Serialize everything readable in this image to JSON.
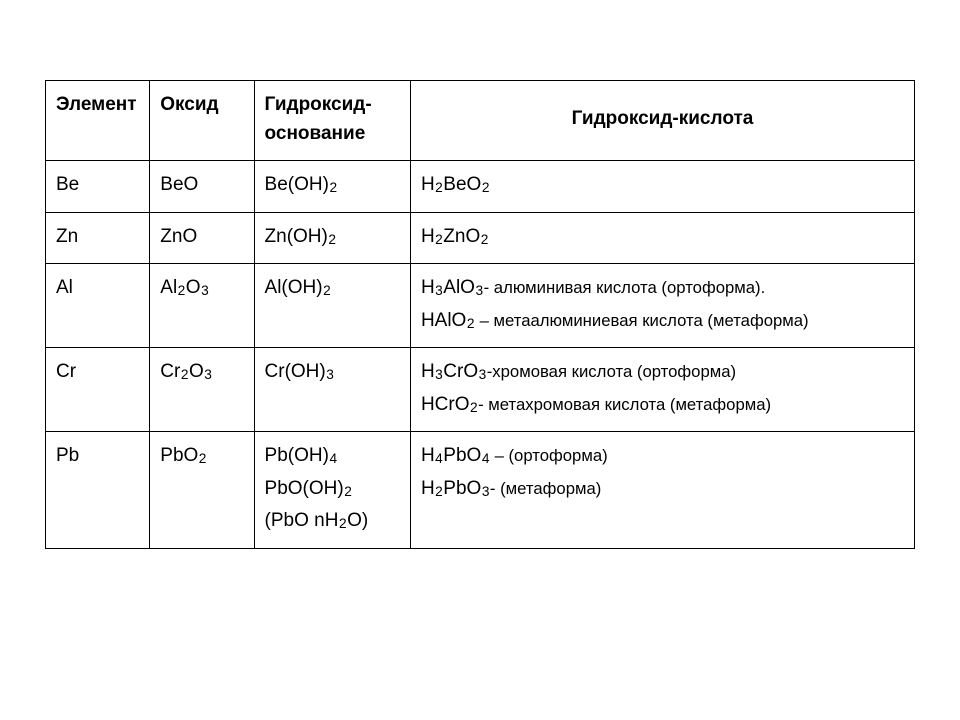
{
  "table": {
    "background_color": "#ffffff",
    "border_color": "#000000",
    "font_family": "Arial",
    "header_fontsize_pt": 14,
    "body_fontsize_pt": 14,
    "column_widths_percent": [
      12,
      12,
      18,
      58
    ],
    "headers": {
      "col1": "Элемент",
      "col2": "Оксид",
      "col3_line1": "Гидроксид-",
      "col3_line2": "основание",
      "col4": "Гидроксид-кислота"
    },
    "rows": [
      {
        "element": "Be",
        "oxide": {
          "tokens": [
            "BeO"
          ]
        },
        "hydroxide_base": {
          "lines": [
            {
              "tokens": [
                "Be(OH)",
                {
                  "sub": "2"
                }
              ]
            }
          ]
        },
        "hydroxide_acid": {
          "lines": [
            {
              "tokens": [
                "H",
                {
                  "sub": "2"
                },
                "BeO",
                {
                  "sub": "2"
                }
              ]
            }
          ]
        }
      },
      {
        "element": "Zn",
        "oxide": {
          "tokens": [
            "ZnO"
          ]
        },
        "hydroxide_base": {
          "lines": [
            {
              "tokens": [
                "Zn(OH)",
                {
                  "sub": "2"
                }
              ]
            }
          ]
        },
        "hydroxide_acid": {
          "lines": [
            {
              "tokens": [
                "H",
                {
                  "sub": "2"
                },
                "ZnO",
                {
                  "sub": "2"
                }
              ]
            }
          ]
        }
      },
      {
        "element": "Al",
        "oxide": {
          "tokens": [
            "Al",
            {
              "sub": "2"
            },
            "O",
            {
              "sub": "3"
            }
          ]
        },
        "hydroxide_base": {
          "lines": [
            {
              "tokens": [
                "Al(OH)",
                {
                  "sub": "2"
                }
              ]
            }
          ]
        },
        "hydroxide_acid": {
          "lines": [
            {
              "tokens": [
                "H",
                {
                  "sub": "3"
                },
                "AlO",
                {
                  "sub": "3"
                },
                {
                  "note": "- алюминивая кислота (ортоформа)."
                }
              ]
            },
            {
              "tokens": [
                "HAlO",
                {
                  "sub": "2"
                },
                {
                  "note": " – метаалюминиевая кислота (метаформа)"
                }
              ]
            }
          ]
        }
      },
      {
        "element": "Cr",
        "oxide": {
          "tokens": [
            "Cr",
            {
              "sub": "2"
            },
            "O",
            {
              "sub": "3"
            }
          ]
        },
        "hydroxide_base": {
          "lines": [
            {
              "tokens": [
                "Cr(OH)",
                {
                  "sub": "3"
                }
              ]
            }
          ]
        },
        "hydroxide_acid": {
          "lines": [
            {
              "tokens": [
                "H",
                {
                  "sub": "3"
                },
                "CrO",
                {
                  "sub": "3"
                },
                {
                  "note": "-хромовая кислота (ортоформа)"
                }
              ]
            },
            {
              "tokens": [
                "HCrO",
                {
                  "sub": "2"
                },
                {
                  "note": "- метахромовая кислота (метаформа)"
                }
              ]
            }
          ]
        }
      },
      {
        "element": "Pb",
        "oxide": {
          "tokens": [
            "PbO",
            {
              "sub": "2"
            }
          ]
        },
        "hydroxide_base": {
          "lines": [
            {
              "tokens": [
                "Pb(OH)",
                {
                  "sub": "4"
                }
              ]
            },
            {
              "tokens": [
                "PbO(OH)",
                {
                  "sub": "2"
                }
              ]
            },
            {
              "tokens": [
                "(PbO nH",
                {
                  "sub": "2"
                },
                "O)"
              ]
            }
          ]
        },
        "hydroxide_acid": {
          "lines": [
            {
              "tokens": [
                "H",
                {
                  "sub": "4"
                },
                "PbO",
                {
                  "sub": "4"
                },
                {
                  "note": " – (ортоформа)"
                }
              ]
            },
            {
              "tokens": [
                "H",
                {
                  "sub": "2"
                },
                "PbO",
                {
                  "sub": "3"
                },
                {
                  "note": "- (метаформа)"
                }
              ]
            }
          ]
        }
      }
    ]
  }
}
